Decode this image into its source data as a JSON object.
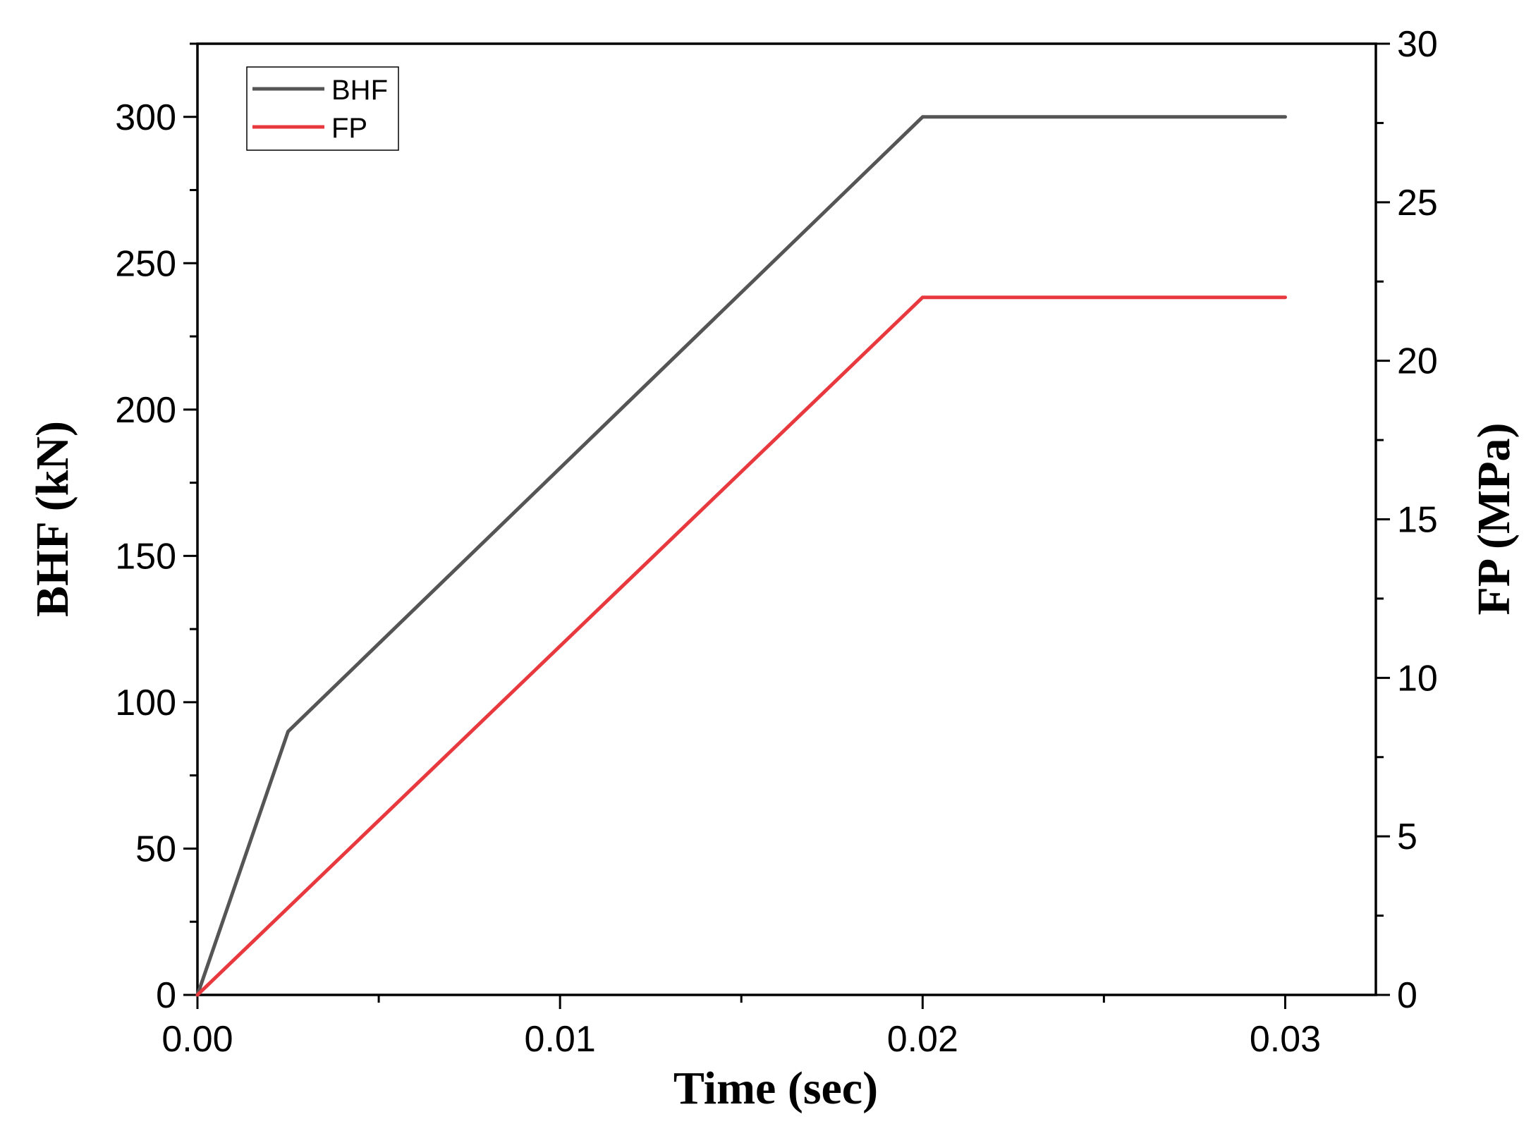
{
  "chart_data": {
    "type": "line",
    "xlabel": "Time (sec)",
    "ylabel": "BHF (kN)",
    "y2label": "FP (MPa)",
    "xlim": [
      0,
      0.0325
    ],
    "ylim": [
      0,
      325
    ],
    "y2lim": [
      0,
      30
    ],
    "x_ticks": [
      "0.00",
      "0.01",
      "0.02",
      "0.03"
    ],
    "y_ticks": [
      "0",
      "50",
      "100",
      "150",
      "200",
      "250",
      "300"
    ],
    "y2_ticks": [
      "0",
      "5",
      "10",
      "15",
      "20",
      "25",
      "30"
    ],
    "grid": false,
    "legend_position": "top-left",
    "series": [
      {
        "name": "BHF",
        "axis": "left",
        "color": "#555555",
        "points": [
          [
            0,
            0
          ],
          [
            0.0025,
            90
          ],
          [
            0.02,
            300
          ],
          [
            0.03,
            300
          ]
        ]
      },
      {
        "name": "FP",
        "axis": "right",
        "color": "#e8393f",
        "points": [
          [
            0,
            0
          ],
          [
            0.02,
            22
          ],
          [
            0.03,
            22
          ]
        ]
      }
    ]
  }
}
